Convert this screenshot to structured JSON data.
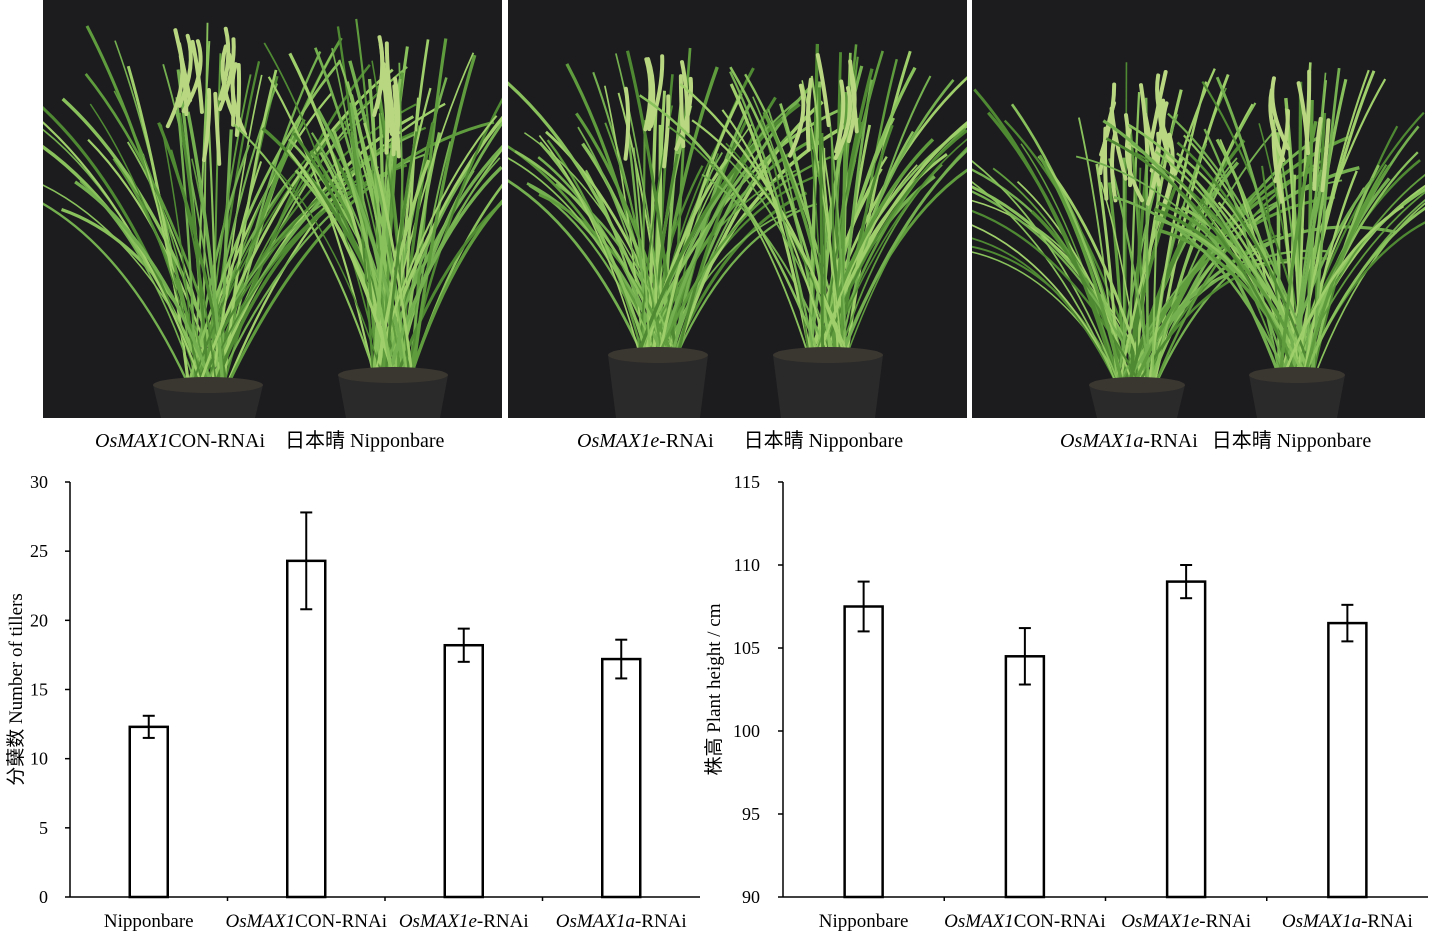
{
  "photos": [
    {
      "caption_gene": "OsMAX1",
      "caption_suffix": "CON-RNAi",
      "caption_control": "日本晴 Nipponbare"
    },
    {
      "caption_gene": "OsMAX1e",
      "caption_suffix": "-RNAi",
      "caption_control": "日本晴 Nipponbare"
    },
    {
      "caption_gene": "OsMAX1a",
      "caption_suffix": "-RNAi",
      "caption_control": "日本晴 Nipponbare"
    }
  ],
  "colors": {
    "photo_background": "#1c1c1f",
    "plant_green": "#6aa548",
    "pot": "#2a2a2a"
  },
  "chart_data": [
    {
      "type": "bar",
      "ylabel": "分蘖数 Number of tillers",
      "ylim": [
        0,
        30
      ],
      "yticks": [
        0,
        5,
        10,
        15,
        20,
        25,
        30
      ],
      "categories": [
        "Nipponbare",
        "OsMAX1CON-RNAi",
        "OsMAX1e-RNAi",
        "OsMAX1a-RNAi"
      ],
      "category_parts": [
        {
          "italic": "",
          "plain": "Nipponbare"
        },
        {
          "italic": "OsMAX1",
          "plain": "CON-RNAi"
        },
        {
          "italic": "OsMAX1e",
          "plain": "-RNAi"
        },
        {
          "italic": "OsMAX1a",
          "plain": "-RNAi"
        }
      ],
      "values": [
        12.3,
        24.3,
        18.2,
        17.2
      ],
      "errors": [
        0.8,
        3.5,
        1.2,
        1.4
      ],
      "bar_fill": "#ffffff"
    },
    {
      "type": "bar",
      "ylabel": "株高 Plant height / cm",
      "ylim": [
        90,
        115
      ],
      "yticks": [
        90,
        95,
        100,
        105,
        110,
        115
      ],
      "categories": [
        "Nipponbare",
        "OsMAX1CON-RNAi",
        "OsMAX1e-RNAi",
        "OsMAX1a-RNAi"
      ],
      "category_parts": [
        {
          "italic": "",
          "plain": "Nipponbare"
        },
        {
          "italic": "OsMAX1",
          "plain": "CON-RNAi"
        },
        {
          "italic": "OsMAX1e",
          "plain": "-RNAi"
        },
        {
          "italic": "OsMAX1a",
          "plain": "-RNAi"
        }
      ],
      "values": [
        107.5,
        104.5,
        109.0,
        106.5
      ],
      "errors": [
        1.5,
        1.7,
        1.0,
        1.1
      ],
      "bar_fill": "#ffffff"
    }
  ]
}
